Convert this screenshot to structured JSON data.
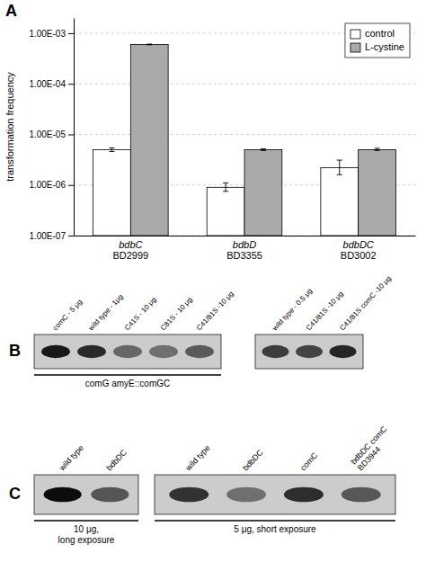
{
  "chart_data": [
    {
      "type": "bar",
      "title": "A",
      "categories": [
        "bdbC\nBD2999",
        "bdbD\nBD3355",
        "bdbDC\nBD3002"
      ],
      "series": [
        {
          "name": "control",
          "color": "white",
          "values": [
            5e-06,
            9e-07,
            2.2e-06
          ],
          "errors_lo": [
            4e-07,
            1.5e-07,
            6e-07
          ],
          "errors_hi": [
            4e-07,
            2e-07,
            9e-07
          ]
        },
        {
          "name": "L-cystine",
          "color": "#aaaaaa",
          "values": [
            0.0006,
            5e-06,
            5e-06
          ],
          "errors_lo": [
            1e-05,
            2e-07,
            2e-07
          ],
          "errors_hi": [
            1e-05,
            2e-07,
            3e-07
          ]
        }
      ],
      "ylabel": "transformation frequency",
      "log": "y",
      "ylim": [
        1e-07,
        0.002
      ],
      "yticks": [
        {
          "value": 1e-07,
          "label": "1.00E-07"
        },
        {
          "value": 1e-06,
          "label": "1.00E-06"
        },
        {
          "value": 1e-05,
          "label": "1.00E-05"
        },
        {
          "value": 0.0001,
          "label": "1.00E-04"
        },
        {
          "value": 0.001,
          "label": "1.00E-03"
        }
      ],
      "grid": true,
      "legend": "top-right"
    },
    {
      "type": "gel",
      "title": "B",
      "categories": [
        "comC - 5 μg",
        "wild type - 1μg",
        "C41S - 10 μg",
        "C81S - 10 μg",
        "C41/81S -10 μg"
      ],
      "values": [
        0.88,
        0.75,
        0.28,
        0.22,
        0.38
      ],
      "color": "#cccccc",
      "xlabel": "comG amyE::comGC"
    },
    {
      "type": "gel",
      "categories": [
        "wild type - 0.5 μg",
        "C41/81S -10 μg",
        "C41/81S comC -10 μg"
      ],
      "values": [
        0.6,
        0.55,
        0.78
      ],
      "color": "#cccccc"
    },
    {
      "type": "gel",
      "title": "C",
      "categories": [
        "wild type",
        "bdbDC"
      ],
      "values": [
        0.97,
        0.42
      ],
      "color": "#cccccc",
      "xlabel": "10 μg,\nlong exposure"
    },
    {
      "type": "gel",
      "categories": [
        "wild type",
        "bdbDC",
        "comC",
        "bdbDC comC\nBD3944"
      ],
      "values": [
        0.68,
        0.22,
        0.72,
        0.4
      ],
      "color": "#cccccc",
      "xlabel": "5 μg, short exposure"
    }
  ]
}
